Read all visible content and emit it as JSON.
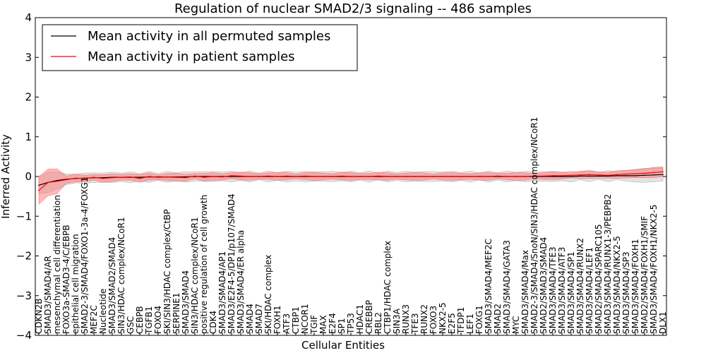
{
  "chart_data": {
    "type": "line",
    "title": "Regulation of nuclear SMAD2/3 signaling -- 486 samples",
    "xlabel": "Cellular Entities",
    "ylabel": "Inferred Activity",
    "ylim": [
      -4,
      4
    ],
    "yticks": [
      -4,
      -3,
      -2,
      -1,
      0,
      1,
      2,
      3,
      4
    ],
    "ytick_labels": [
      "−4",
      "−3",
      "−2",
      "−1",
      "0",
      "1",
      "2",
      "3",
      "4"
    ],
    "grid": false,
    "legend_position": "top-left",
    "categories": [
      "CDKN2B",
      "SMAD3/SMAD4/AR",
      "mesenchymal cell differentiation",
      "FOXO3a-SMAD3-4/C/EBPB",
      "epithelial cell migration",
      "SMAD2-3/SMAD4/FOXO1-3a-4/FOXG1",
      "MEF2C",
      "Nucleotide",
      "SMAD3/SMAD2/SMAD4",
      "SIN3/HDAC complex/NCoR1",
      "GSC",
      "CEBPB",
      "TGFB1",
      "FOXO4",
      "SKI/SIN3/HDAC complex/CtBP",
      "SERPINE1",
      "SMAD3/SMAD4",
      "SIN3/HDAC complex/NCoR1",
      "positive regulation of cell growth",
      "CDK4",
      "SMAD3/SMAD4/AP1",
      "SMAD3/E2F4-5/DP1/p107/SMAD4",
      "SMAD3/SMAD4/ER alpha",
      "SMAD4",
      "SMAD7",
      "SKI/HDAC complex",
      "FOXH1",
      "ATF3",
      "CTBP1",
      "NCOR1",
      "TGIF",
      "MAX",
      "E2F4",
      "SP1",
      "TP53",
      "HDAC1",
      "CREBBP",
      "RBL2",
      "CTBP1/HDAC complex",
      "SIN3A",
      "RUNX3",
      "TFE3",
      "RUNX2",
      "FOXO3",
      "NKX2-5",
      "E2F5",
      "TFDP1",
      "LEF1",
      "FOXG1",
      "SMAD3/SMAD4/MEF2C",
      "SMAD2",
      "SMAD3/SMAD4/GATA3",
      "MYC",
      "SMAD3/SMAD4/Max",
      "SMAD2-3/SMAD4/SnoN/SIN3/HDAC complex/NCoR1",
      "SMAD2/SMAD3/SMAD4",
      "SMAD3/SMAD4/TFE3",
      "SMAD3/SMAD4/ATF3",
      "SMAD3/SMAD4/SP1",
      "SMAD3/SMAD4/RUNX2",
      "SMAD3/SMAD4/LEF1",
      "SMAD2/SMAD4/SPARC105",
      "SMAD3/SMAD4/RUNX1-3/PEBPB2",
      "SMAD3/SMAD4/NKX2-5",
      "SMAD3/SMAD4/SP3",
      "SMAD3/SMAD4/FOXH1",
      "SMAD2/SMAD4/FOXH1/SMIF",
      "SMAD3/SMAD4/FOXH1/NKX2-5",
      "DLX1"
    ],
    "series": [
      {
        "name": "Mean activity in all permuted samples",
        "color": "#000000",
        "values": [
          -0.22,
          -0.15,
          -0.1,
          -0.07,
          -0.05,
          -0.04,
          -0.03,
          -0.03,
          -0.02,
          -0.02,
          -0.02,
          -0.02,
          -0.01,
          -0.01,
          -0.01,
          -0.01,
          -0.01,
          0,
          0,
          0,
          0,
          0,
          0,
          0,
          0,
          0,
          0,
          0,
          0,
          0,
          0,
          0,
          0,
          0,
          0,
          0,
          0,
          0,
          0,
          0,
          0,
          0,
          0,
          0,
          0,
          0,
          0,
          0,
          0,
          0,
          0,
          0,
          0,
          0,
          0,
          0,
          0,
          0,
          0,
          0.01,
          0.01,
          0.01,
          0.01,
          0.02,
          0.02,
          0.02,
          0.03,
          0.04,
          0.05
        ]
      },
      {
        "name": "Mean activity in patient samples",
        "color": "#ff0000",
        "values": [
          -0.35,
          -0.15,
          -0.12,
          -0.08,
          -0.04,
          -0.05,
          -0.02,
          -0.05,
          -0.03,
          -0.02,
          -0.01,
          -0.05,
          0,
          -0.02,
          -0.01,
          -0.02,
          -0.03,
          0.01,
          -0.02,
          0,
          -0.01,
          0.02,
          0.01,
          0,
          0,
          0.01,
          0,
          0.01,
          0,
          0.01,
          0,
          0,
          0,
          0.01,
          0,
          0,
          0,
          0.01,
          0,
          0,
          0,
          0,
          0,
          0,
          0,
          0,
          0,
          0,
          0,
          0,
          0.01,
          0,
          0,
          0,
          0.01,
          0.01,
          0.02,
          0.02,
          0.03,
          0.04,
          0.05,
          0.04,
          0.03,
          0.05,
          0.06,
          0.07,
          0.08,
          0.1,
          0.12
        ]
      }
    ]
  }
}
